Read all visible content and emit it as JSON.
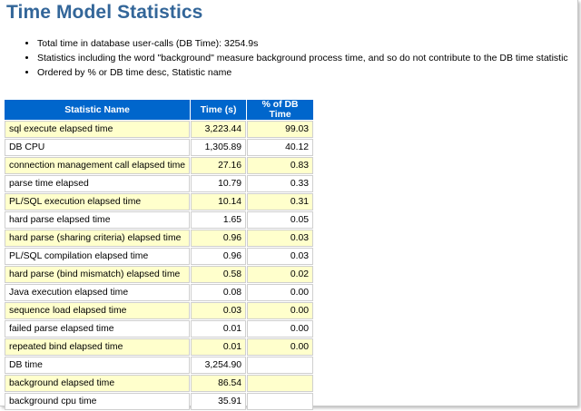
{
  "title": "Time Model Statistics",
  "notes": [
    "Total time in database user-calls (DB Time): 3254.9s",
    "Statistics including the word \"background\" measure background process time, and so do not contribute to the DB time statistic",
    "Ordered by % or DB time desc, Statistic name"
  ],
  "table": {
    "headers": [
      "Statistic Name",
      "Time (s)",
      "% of DB Time"
    ],
    "rows": [
      {
        "name": "sql execute elapsed time",
        "time": "3,223.44",
        "pct": "99.03"
      },
      {
        "name": "DB CPU",
        "time": "1,305.89",
        "pct": "40.12"
      },
      {
        "name": "connection management call elapsed time",
        "time": "27.16",
        "pct": "0.83"
      },
      {
        "name": "parse time elapsed",
        "time": "10.79",
        "pct": "0.33"
      },
      {
        "name": "PL/SQL execution elapsed time",
        "time": "10.14",
        "pct": "0.31"
      },
      {
        "name": "hard parse elapsed time",
        "time": "1.65",
        "pct": "0.05"
      },
      {
        "name": "hard parse (sharing criteria) elapsed time",
        "time": "0.96",
        "pct": "0.03"
      },
      {
        "name": "PL/SQL compilation elapsed time",
        "time": "0.96",
        "pct": "0.03"
      },
      {
        "name": "hard parse (bind mismatch) elapsed time",
        "time": "0.58",
        "pct": "0.02"
      },
      {
        "name": "Java execution elapsed time",
        "time": "0.08",
        "pct": "0.00"
      },
      {
        "name": "sequence load elapsed time",
        "time": "0.03",
        "pct": "0.00"
      },
      {
        "name": "failed parse elapsed time",
        "time": "0.01",
        "pct": "0.00"
      },
      {
        "name": "repeated bind elapsed time",
        "time": "0.01",
        "pct": "0.00"
      },
      {
        "name": "DB time",
        "time": "3,254.90",
        "pct": ""
      },
      {
        "name": "background elapsed time",
        "time": "86.54",
        "pct": ""
      },
      {
        "name": "background cpu time",
        "time": "35.91",
        "pct": ""
      }
    ]
  },
  "colors": {
    "title": "#336699",
    "header_bg": "#0066cc",
    "odd_row_bg": "#ffffcc",
    "even_row_bg": "#ffffff"
  }
}
